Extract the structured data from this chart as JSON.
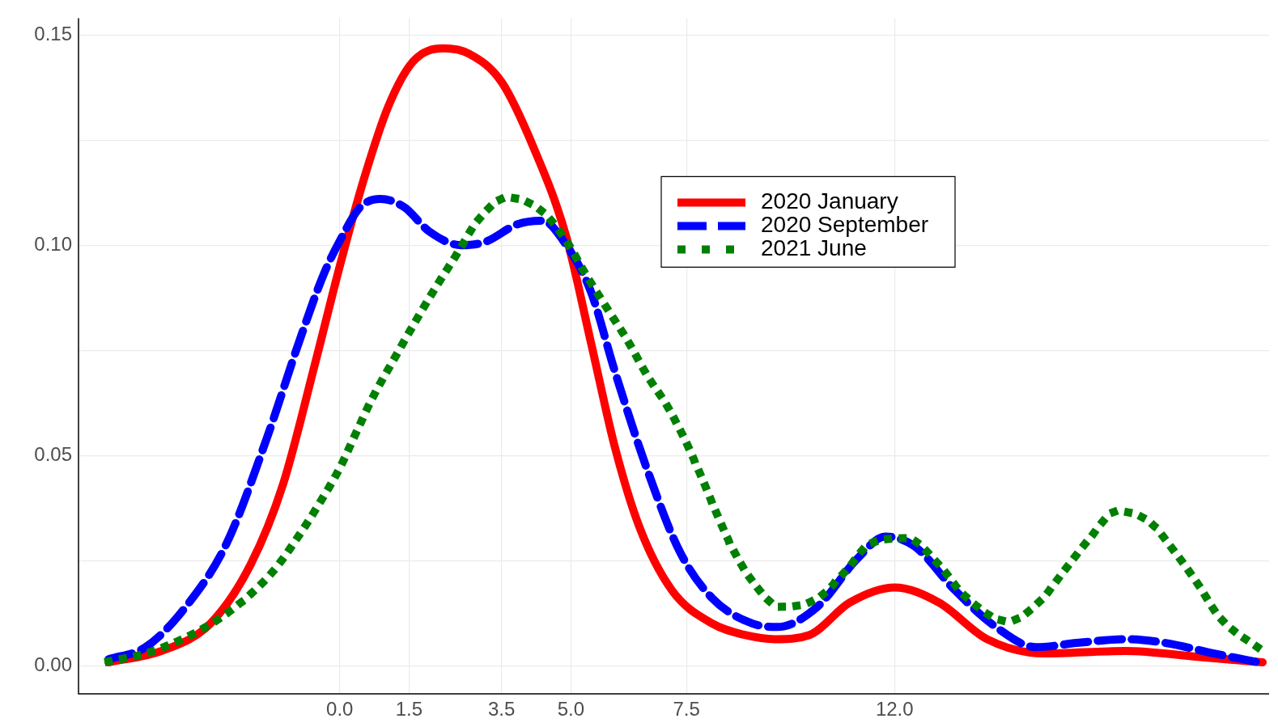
{
  "chart_data": {
    "type": "line",
    "xlim": [
      -5.65,
      20.1
    ],
    "ylim": [
      -0.0067,
      0.154
    ],
    "xticks": [
      {
        "value": 0,
        "label": "0.0"
      },
      {
        "value": 1.5,
        "label": "1.5"
      },
      {
        "value": 3.5,
        "label": "3.5"
      },
      {
        "value": 5,
        "label": "5.0"
      },
      {
        "value": 7.5,
        "label": "7.5"
      },
      {
        "value": 12,
        "label": "12.0"
      }
    ],
    "yticks": [
      {
        "value": 0,
        "label": "0.00"
      },
      {
        "value": 0.025,
        "label": null
      },
      {
        "value": 0.05,
        "label": "0.05"
      },
      {
        "value": 0.075,
        "label": null
      },
      {
        "value": 0.1,
        "label": "0.10"
      },
      {
        "value": 0.125,
        "label": null
      },
      {
        "value": 0.15,
        "label": "0.15"
      }
    ],
    "grid": true,
    "legend": "top right",
    "series": [
      {
        "name": "2020 January",
        "color": "#ff0000",
        "line_style": "solid",
        "x": [
          -5,
          -3.85,
          -2.8,
          -1.93,
          -1.23,
          -0.53,
          0,
          0.53,
          1.05,
          1.58,
          2.24,
          2.8,
          3.5,
          4.2,
          4.9,
          5.43,
          5.95,
          6.48,
          7.18,
          8.06,
          8.76,
          9.42,
          10.16,
          11.03,
          12,
          12.96,
          14,
          15.24,
          16.99,
          18.56,
          19.96
        ],
        "values": [
          0.0008,
          0.0035,
          0.01,
          0.024,
          0.043,
          0.072,
          0.095,
          0.116,
          0.133,
          0.1436,
          0.1468,
          0.1455,
          0.1388,
          0.123,
          0.102,
          0.077,
          0.052,
          0.033,
          0.018,
          0.01,
          0.0073,
          0.0063,
          0.0073,
          0.015,
          0.0186,
          0.015,
          0.0063,
          0.0029,
          0.0035,
          0.0021,
          0.0008
        ]
      },
      {
        "name": "2020 September",
        "color": "#0000ff",
        "line_style": "dashed",
        "x": [
          -5,
          -4.2,
          -3.33,
          -2.45,
          -1.58,
          -0.88,
          -0.35,
          0,
          0.44,
          0.88,
          1.4,
          1.93,
          2.63,
          3.15,
          3.85,
          4.38,
          4.9,
          5.43,
          5.95,
          6.65,
          7.36,
          8.06,
          8.93,
          9.46,
          10.33,
          11.2,
          11.8,
          12.43,
          13.3,
          14.19,
          15.06,
          15.94,
          16.99,
          17.86,
          18.91,
          19.96
        ],
        "values": [
          0.0015,
          0.0044,
          0.014,
          0.029,
          0.054,
          0.077,
          0.093,
          0.101,
          0.109,
          0.111,
          0.109,
          0.1033,
          0.1,
          0.1008,
          0.105,
          0.1058,
          0.1,
          0.089,
          0.07,
          0.0466,
          0.027,
          0.016,
          0.01,
          0.0092,
          0.014,
          0.0255,
          0.0307,
          0.0284,
          0.018,
          0.0092,
          0.0044,
          0.0054,
          0.0063,
          0.0054,
          0.0029,
          0.0006
        ]
      },
      {
        "name": "2021 June",
        "color": "#008000",
        "line_style": "dotted",
        "x": [
          -5,
          -4.2,
          -3.33,
          -2.63,
          -1.93,
          -1.4,
          -0.88,
          -0.44,
          0,
          0.35,
          0.7,
          1.23,
          1.66,
          2.1,
          2.54,
          2.98,
          3.63,
          4.38,
          4.9,
          5.34,
          5.78,
          6.22,
          6.65,
          7.09,
          7.48,
          7.83,
          8.14,
          8.49,
          8.93,
          9.54,
          10.33,
          10.95,
          11.47,
          12.26,
          12.96,
          13.49,
          14.45,
          15.15,
          15.67,
          16.2,
          16.81,
          17.51,
          18.07,
          18.56,
          19.03,
          19.96
        ],
        "values": [
          0.001,
          0.0029,
          0.0067,
          0.011,
          0.017,
          0.023,
          0.031,
          0.0386,
          0.047,
          0.0553,
          0.0635,
          0.074,
          0.0823,
          0.0904,
          0.098,
          0.1058,
          0.1113,
          0.108,
          0.101,
          0.0927,
          0.085,
          0.0774,
          0.069,
          0.0616,
          0.0534,
          0.0447,
          0.0365,
          0.028,
          0.02,
          0.014,
          0.016,
          0.0226,
          0.029,
          0.0303,
          0.024,
          0.0169,
          0.0106,
          0.0154,
          0.0226,
          0.03,
          0.0367,
          0.0342,
          0.0269,
          0.0194,
          0.0115,
          0.0035
        ]
      }
    ]
  }
}
